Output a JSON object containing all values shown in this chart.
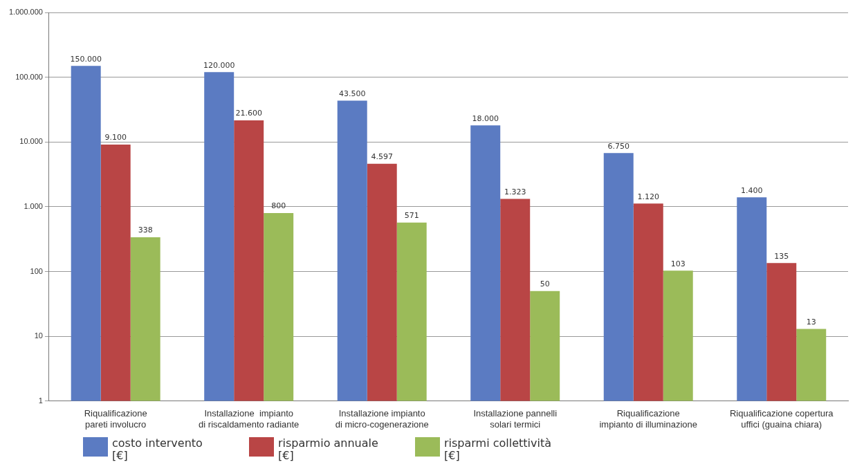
{
  "chart_data": {
    "type": "bar",
    "categories": [
      "Riqualificazione\npareti involucro",
      "Installazione  impianto\ndi riscaldamento radiante",
      "Installazione impianto\ndi micro-cogenerazione",
      "Installazione pannelli\nsolari termici",
      "Riqualificazione\nimpianto di illuminazione",
      "Riqualificazione copertura\nuffici (guaina chiara)"
    ],
    "series": [
      {
        "name": "costo intervento\n[€]",
        "color": "#5b7bc2",
        "values": [
          150000,
          120000,
          43500,
          18000,
          6750,
          1400
        ],
        "value_labels": [
          "150.000",
          "120.000",
          "43.500",
          "18.000",
          "6.750",
          "1.400"
        ]
      },
      {
        "name": "risparmio annuale\n[€]",
        "color": "#b94545",
        "values": [
          9100,
          21600,
          4597,
          1323,
          1120,
          135
        ],
        "value_labels": [
          "9.100",
          "21.600",
          "4.597",
          "1.323",
          "1.120",
          "135"
        ]
      },
      {
        "name": "risparmi collettività\n[€]",
        "color": "#9bbb59",
        "values": [
          338,
          800,
          571,
          50,
          103,
          13
        ],
        "value_labels": [
          "338",
          "800",
          "571",
          "50",
          "103",
          "13"
        ]
      }
    ],
    "log": "y",
    "ylim": [
      1,
      1000000
    ],
    "yticks": [
      1,
      10,
      {
        "value": 100,
        "label": "100"
      },
      {
        "value": 1000,
        "label": "1.000"
      },
      {
        "value": 10000,
        "label": "10.000"
      },
      {
        "value": 100000,
        "label": "100.000"
      },
      {
        "value": 1000000,
        "label": "1.000.000"
      }
    ],
    "grid": "y",
    "legend": "bottom"
  }
}
